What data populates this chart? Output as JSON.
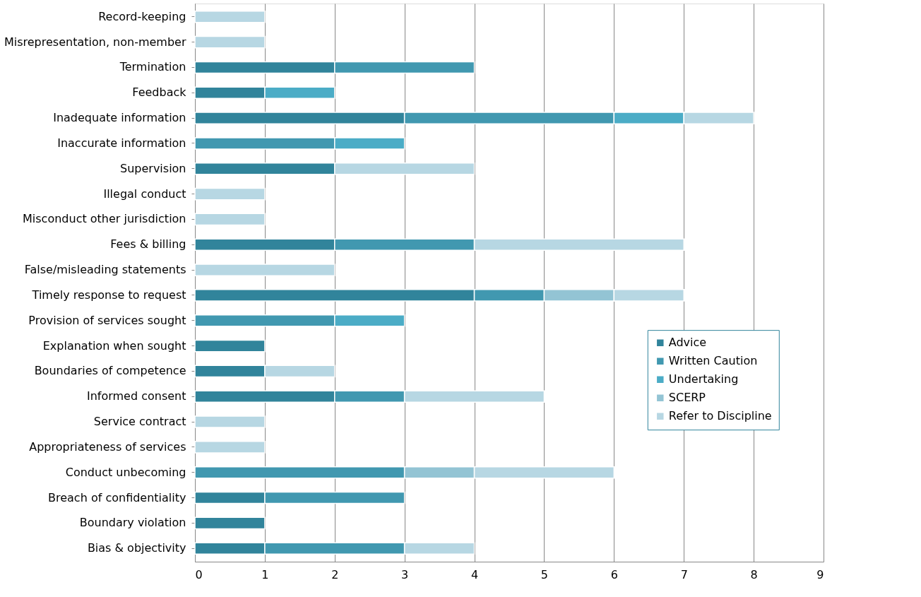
{
  "chart_data": {
    "type": "bar",
    "orientation": "horizontal",
    "stacked": true,
    "categories": [
      "Record-keeping",
      "Misrepresentation, non-member",
      "Termination",
      "Feedback",
      "Inadequate information",
      "Inaccurate information",
      "Supervision",
      "Illegal conduct",
      "Misconduct other jurisdiction",
      "Fees & billing",
      "False/misleading statements",
      "Timely response to request",
      "Provision of services sought",
      "Explanation when sought",
      "Boundaries of competence",
      "Informed consent",
      "Service contract",
      "Appropriateness of services",
      "Conduct unbecoming",
      "Breach of confidentiality",
      "Boundary violation",
      "Bias & objectivity"
    ],
    "series": [
      {
        "name": "Advice",
        "color": "#31849b",
        "values": [
          null,
          null,
          2,
          1,
          3,
          null,
          2,
          null,
          null,
          2,
          null,
          4,
          null,
          1,
          1,
          2,
          null,
          null,
          null,
          1,
          1,
          1
        ]
      },
      {
        "name": "Written Caution",
        "color": "#4198b0",
        "values": [
          null,
          null,
          2,
          null,
          3,
          2,
          null,
          null,
          null,
          2,
          null,
          1,
          2,
          null,
          null,
          1,
          null,
          null,
          3,
          2,
          null,
          2
        ]
      },
      {
        "name": "Undertaking",
        "color": "#4bacc6",
        "values": [
          null,
          null,
          null,
          1,
          1,
          1,
          null,
          null,
          null,
          null,
          null,
          null,
          1,
          null,
          null,
          null,
          null,
          null,
          null,
          null,
          null,
          null
        ]
      },
      {
        "name": "SCERP",
        "color": "#93c4d4",
        "values": [
          null,
          null,
          null,
          null,
          null,
          null,
          null,
          null,
          null,
          null,
          null,
          1,
          null,
          null,
          null,
          null,
          null,
          null,
          1,
          null,
          null,
          null
        ]
      },
      {
        "name": "Refer to Discipline",
        "color": "#b7d7e3",
        "values": [
          1,
          1,
          null,
          null,
          1,
          null,
          2,
          1,
          1,
          3,
          2,
          1,
          null,
          null,
          1,
          2,
          1,
          1,
          2,
          null,
          null,
          1
        ]
      }
    ],
    "xlim": [
      0,
      9
    ],
    "xticks": [
      0,
      1,
      2,
      3,
      4,
      5,
      6,
      7,
      8,
      9
    ],
    "grid": "x",
    "legend": "right"
  }
}
